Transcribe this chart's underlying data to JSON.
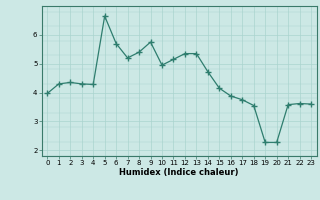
{
  "x": [
    0,
    1,
    2,
    3,
    4,
    5,
    6,
    7,
    8,
    9,
    10,
    11,
    12,
    13,
    14,
    15,
    16,
    17,
    18,
    19,
    20,
    21,
    22,
    23
  ],
  "y": [
    3.97,
    4.3,
    4.35,
    4.3,
    4.28,
    6.65,
    5.7,
    5.2,
    5.4,
    5.75,
    4.95,
    5.15,
    5.35,
    5.35,
    4.72,
    4.15,
    3.88,
    3.75,
    3.55,
    2.27,
    2.27,
    3.58,
    3.62,
    3.6
  ],
  "xlabel": "Humidex (Indice chaleur)",
  "line_color": "#2e7d6e",
  "bg_color": "#cce8e5",
  "grid_color_major": "#aad4cf",
  "grid_color_minor": "#c0e0dc",
  "marker": "+",
  "linewidth": 0.9,
  "markersize": 4,
  "markeredgewidth": 1.0,
  "xlim": [
    -0.5,
    23.5
  ],
  "ylim": [
    1.8,
    7.0
  ],
  "yticks": [
    2,
    3,
    4,
    5,
    6
  ],
  "xticks": [
    0,
    1,
    2,
    3,
    4,
    5,
    6,
    7,
    8,
    9,
    10,
    11,
    12,
    13,
    14,
    15,
    16,
    17,
    18,
    19,
    20,
    21,
    22,
    23
  ],
  "xlabel_fontsize": 6.0,
  "tick_fontsize": 5.0
}
